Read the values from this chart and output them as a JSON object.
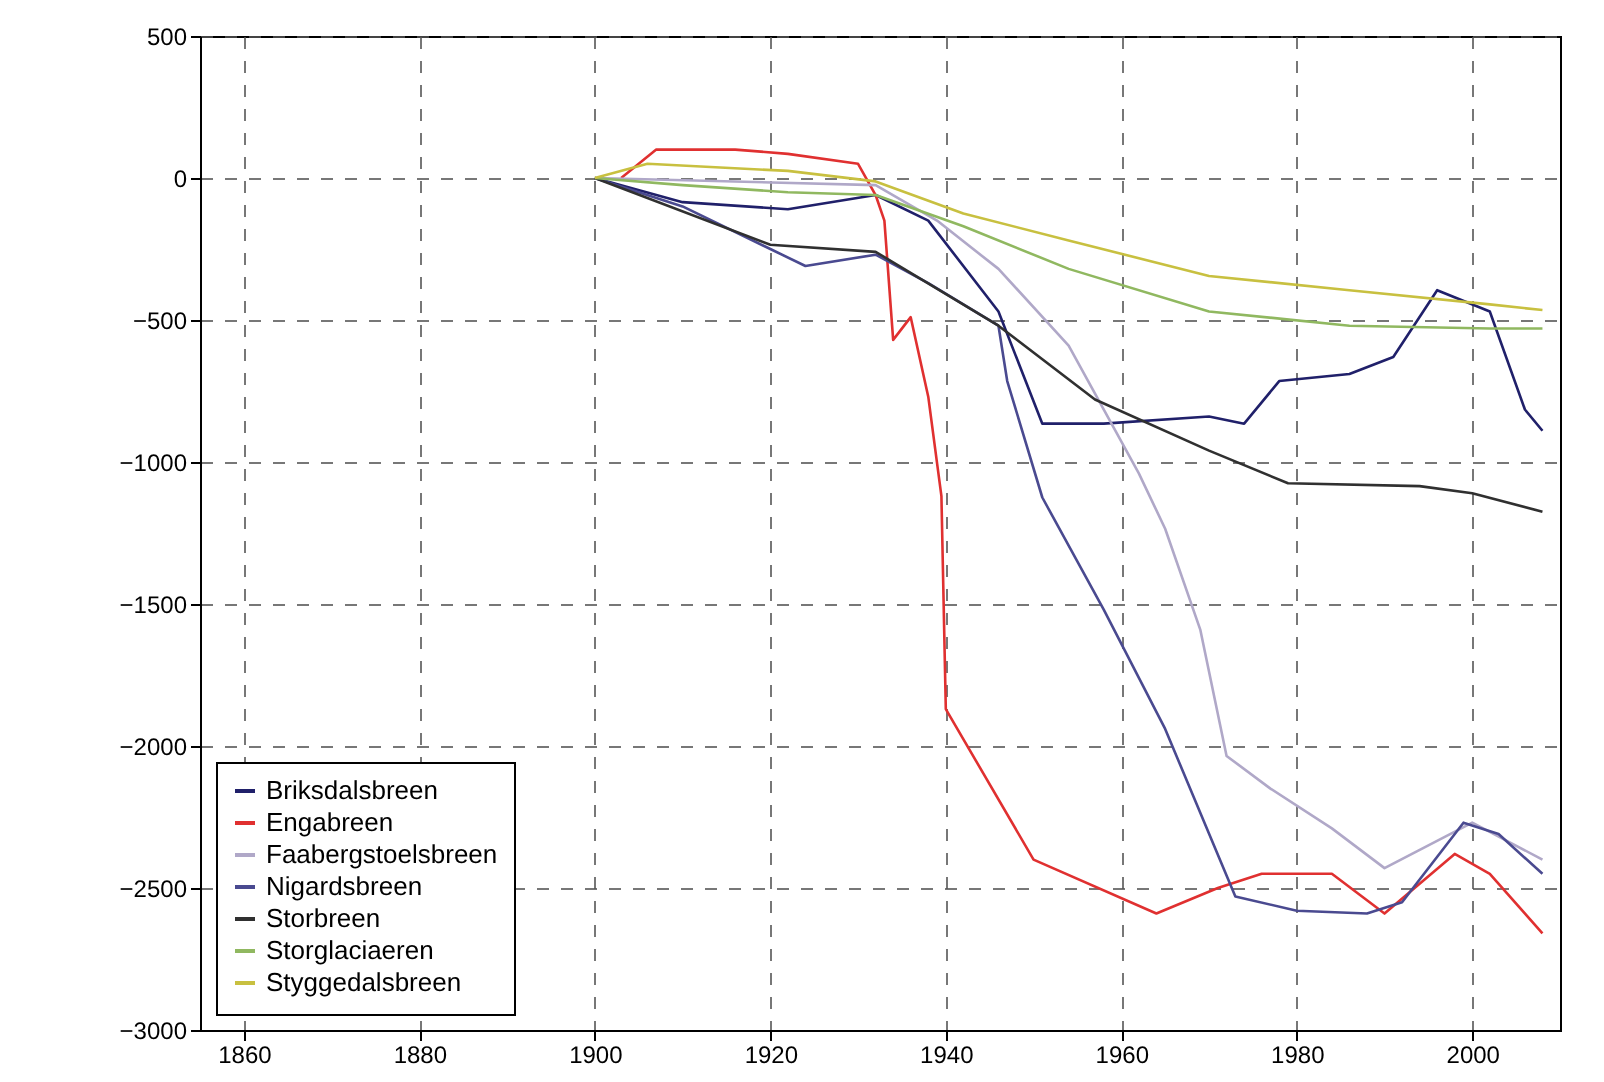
{
  "chart_data": {
    "type": "line",
    "xlim": [
      1855,
      2010
    ],
    "xticks": [
      1860,
      1880,
      1900,
      1920,
      1940,
      1960,
      1980,
      2000
    ],
    "ylim": [
      -3000,
      500
    ],
    "yticks": [
      -3000,
      -2500,
      -2000,
      -1500,
      -1000,
      -500,
      0,
      500
    ],
    "grid": true,
    "legend": "bottom left",
    "series": [
      {
        "name": "Briksdalsbreen",
        "color": "#20206a",
        "x": [
          1900,
          1910,
          1922,
          1932,
          1938,
          1946,
          1951,
          1958,
          1970,
          1974,
          1978,
          1986,
          1991,
          1996,
          2002,
          2006,
          2008
        ],
        "values": [
          0,
          -85,
          -110,
          -60,
          -150,
          -470,
          -865,
          -865,
          -840,
          -865,
          -715,
          -690,
          -630,
          -395,
          -470,
          -815,
          -890
        ]
      },
      {
        "name": "Engabreen",
        "color": "#e03030",
        "x": [
          1903,
          1907,
          1916,
          1922,
          1930,
          1932,
          1933,
          1934,
          1936,
          1938,
          1939.5,
          1940,
          1950,
          1964,
          1971,
          1976,
          1984,
          1990,
          1998,
          2002,
          2008
        ],
        "values": [
          0,
          100,
          100,
          85,
          50,
          -60,
          -150,
          -570,
          -490,
          -770,
          -1120,
          -1870,
          -2400,
          -2590,
          -2500,
          -2450,
          -2450,
          -2590,
          -2380,
          -2450,
          -2660
        ]
      },
      {
        "name": "Faabergstoelsbreen",
        "color": "#b0a8c8",
        "x": [
          1900,
          1932,
          1939,
          1946,
          1954,
          1962,
          1965,
          1969,
          1972,
          1977,
          1984,
          1990,
          2000,
          2008
        ],
        "values": [
          0,
          -25,
          -150,
          -320,
          -590,
          -1040,
          -1235,
          -1590,
          -2035,
          -2150,
          -2290,
          -2430,
          -2270,
          -2400
        ]
      },
      {
        "name": "Nigardsbreen",
        "color": "#4a4a90",
        "x": [
          1900,
          1910,
          1920,
          1924,
          1932,
          1938,
          1946,
          1947,
          1951,
          1958,
          1965,
          1973,
          1980,
          1988,
          1992,
          1999,
          2003,
          2008
        ],
        "values": [
          0,
          -100,
          -250,
          -310,
          -270,
          -370,
          -520,
          -715,
          -1125,
          -1520,
          -1940,
          -2530,
          -2580,
          -2590,
          -2550,
          -2270,
          -2310,
          -2450
        ]
      },
      {
        "name": "Storbreen",
        "color": "#303030",
        "x": [
          1900,
          1920,
          1932,
          1946,
          1957,
          1970,
          1979,
          1994,
          2000,
          2008
        ],
        "values": [
          0,
          -235,
          -260,
          -520,
          -780,
          -960,
          -1075,
          -1085,
          -1110,
          -1175
        ]
      },
      {
        "name": "Storglaciaeren",
        "color": "#90b860",
        "x": [
          1900,
          1910,
          1922,
          1932,
          1942,
          1954,
          1970,
          1986,
          2002,
          2008
        ],
        "values": [
          0,
          -25,
          -50,
          -60,
          -170,
          -320,
          -470,
          -520,
          -530,
          -530
        ]
      },
      {
        "name": "Styggedalsbreen",
        "color": "#c8c040",
        "x": [
          1900,
          1906,
          1922,
          1932,
          1942,
          1954,
          1970,
          1986,
          2002,
          2008
        ],
        "values": [
          0,
          50,
          25,
          -12,
          -125,
          -220,
          -345,
          -395,
          -445,
          -465
        ]
      }
    ]
  }
}
